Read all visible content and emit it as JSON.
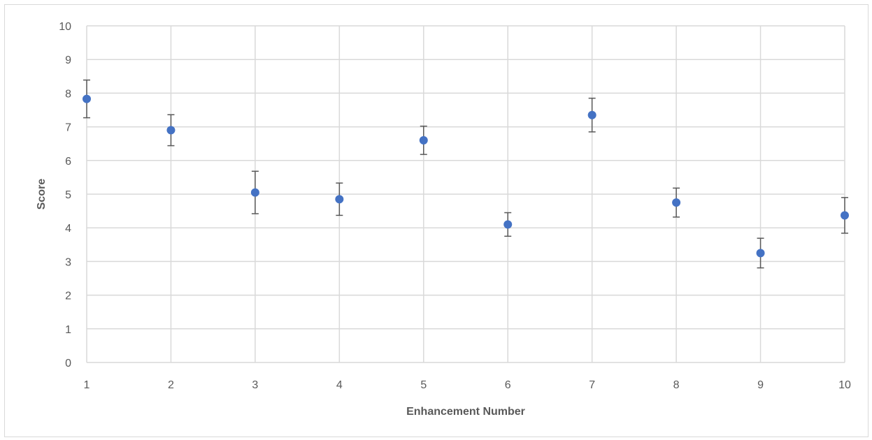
{
  "chart_data": {
    "type": "scatter",
    "title": "",
    "xlabel": "Enhancement Number",
    "ylabel": "Score",
    "xlim": [
      1,
      10
    ],
    "ylim": [
      0,
      10
    ],
    "x_ticks": [
      "1",
      "2",
      "3",
      "4",
      "5",
      "6",
      "7",
      "8",
      "9",
      "10"
    ],
    "y_ticks": [
      "0",
      "1",
      "2",
      "3",
      "4",
      "5",
      "6",
      "7",
      "8",
      "9",
      "10"
    ],
    "grid": true,
    "legend": "none",
    "series": [
      {
        "color": "#4472c4",
        "error_bar_color": "#595959",
        "x": [
          1,
          2,
          3,
          4,
          5,
          6,
          7,
          8,
          9,
          10
        ],
        "y": [
          7.83,
          6.9,
          5.05,
          4.85,
          6.6,
          4.1,
          7.35,
          4.75,
          3.25,
          4.37
        ],
        "error_low": [
          7.27,
          6.44,
          4.42,
          4.37,
          6.18,
          3.75,
          6.85,
          4.32,
          2.81,
          3.84
        ],
        "error_high": [
          8.39,
          7.36,
          5.68,
          5.33,
          7.02,
          4.45,
          7.85,
          5.18,
          3.69,
          4.9
        ]
      }
    ]
  }
}
